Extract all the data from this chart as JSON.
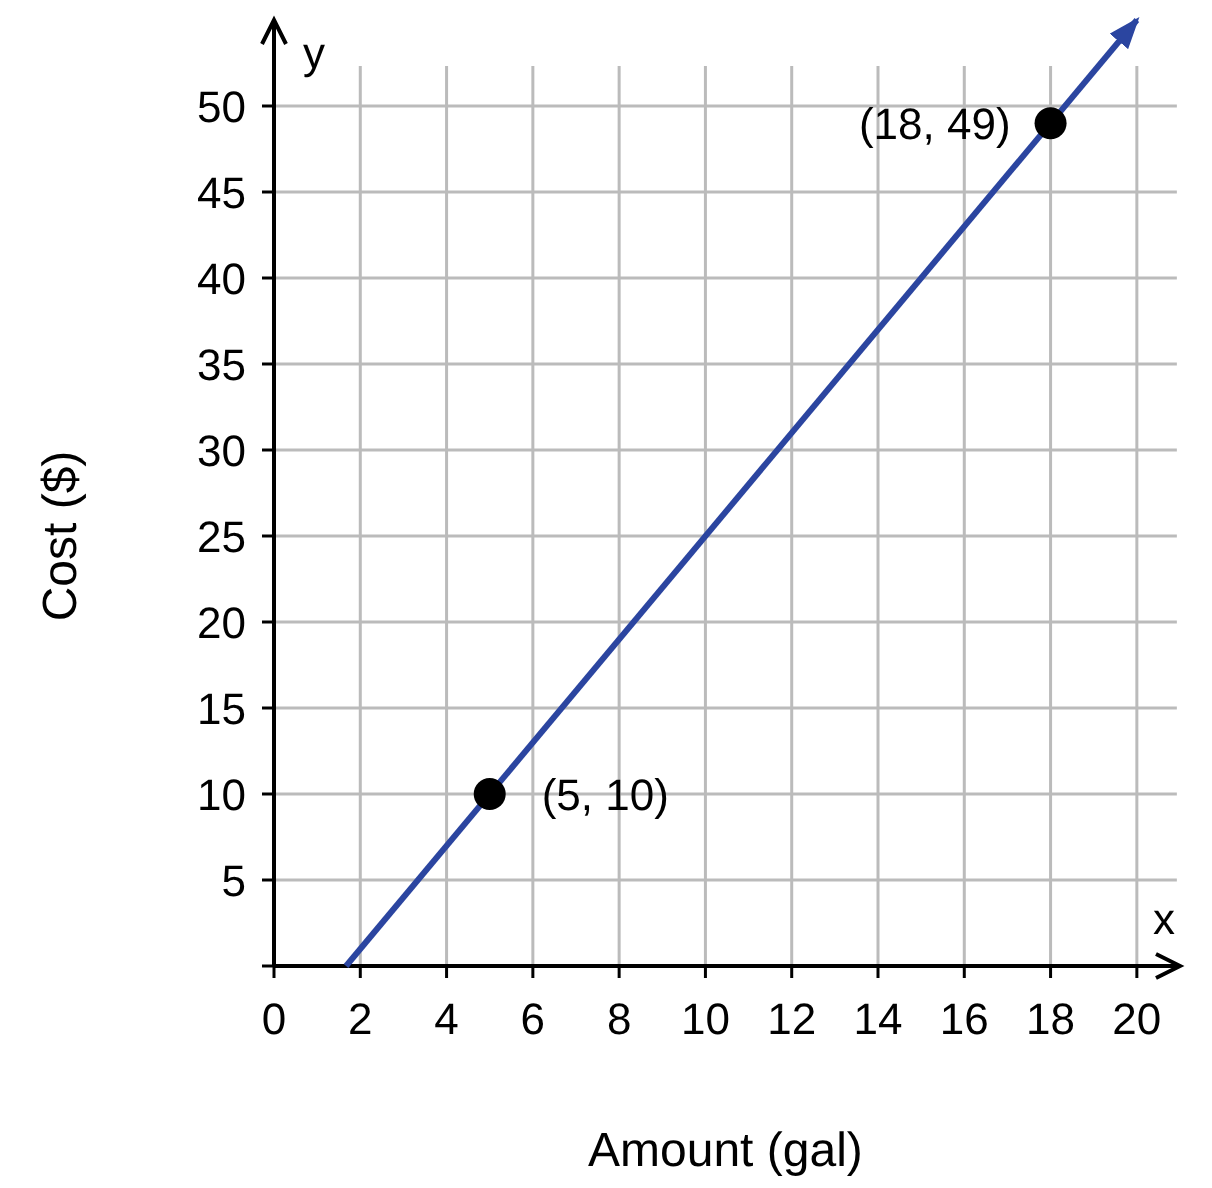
{
  "chart_data": {
    "type": "line",
    "xlabel": "Amount (gal)",
    "ylabel": "Cost ($)",
    "xlim": [
      0,
      21
    ],
    "ylim": [
      0,
      55
    ],
    "xticks": [
      0,
      2,
      4,
      6,
      8,
      10,
      12,
      14,
      16,
      18,
      20
    ],
    "yticks": [
      {
        "value": 0,
        "label": null
      },
      5,
      10,
      15,
      20,
      25,
      30,
      35,
      40,
      45,
      50
    ],
    "grid": true,
    "series": [
      {
        "color": "#2b45a0",
        "x": [
          1.67,
          20
        ],
        "values": [
          0,
          55
        ]
      },
      {
        "type": "scatter",
        "color": "#000000",
        "x": [
          5,
          18
        ],
        "values": [
          10,
          49
        ],
        "marker": "circle"
      }
    ],
    "annotations": [
      {
        "text": "(5, 10)",
        "x": 5,
        "y": 10
      },
      {
        "text": "(18, 49)",
        "x": 18,
        "y": 49
      },
      "x",
      "y"
    ]
  }
}
